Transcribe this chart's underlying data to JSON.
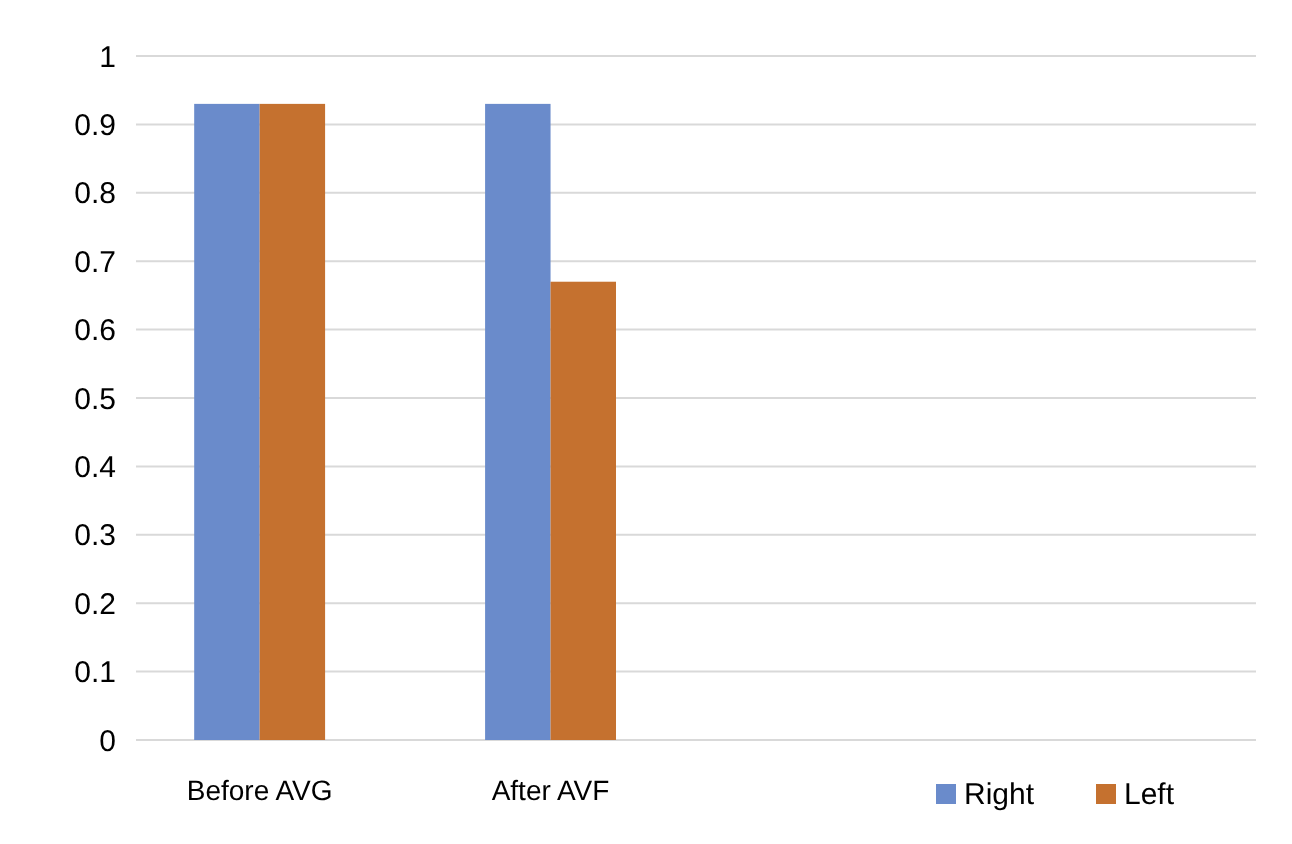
{
  "chart_data": {
    "type": "bar",
    "categories": [
      "Before AVG",
      "After AVF",
      null,
      null
    ],
    "series": [
      {
        "name": "Right",
        "color": "#6a8bcb",
        "values": [
          0.93,
          0.93,
          null,
          null
        ]
      },
      {
        "name": "Left",
        "color": "#c5712f",
        "values": [
          0.93,
          0.67,
          null,
          null
        ]
      }
    ],
    "ylim": [
      0,
      1
    ],
    "yticks": [
      0,
      0.1,
      0.2,
      0.3,
      0.4,
      0.5,
      0.6,
      0.7,
      0.8,
      0.9,
      1
    ],
    "grid": "y",
    "legend": "bottom right"
  }
}
